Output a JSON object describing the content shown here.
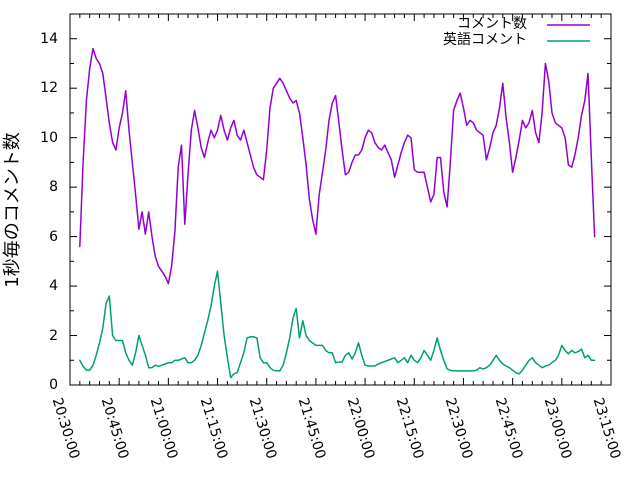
{
  "chart_data": {
    "type": "line",
    "title": "",
    "xlabel": "",
    "ylabel": "1秒毎のコメント数",
    "grid": false,
    "background": "#ffffff",
    "axis_color": "#000000",
    "x_axis": {
      "start": "20:30:00",
      "end": "23:15:00",
      "total_minutes": 165,
      "major_tick_every_min": 15,
      "minor_tick_every_min": 3,
      "tick_labels": [
        "20:30:00",
        "20:45:00",
        "21:00:00",
        "21:15:00",
        "21:30:00",
        "21:45:00",
        "22:00:00",
        "22:15:00",
        "22:30:00",
        "22:45:00",
        "23:00:00",
        "23:15:00"
      ]
    },
    "y_axis": {
      "min": 0,
      "max_label": 14,
      "range_max": 15,
      "major_tick_every": 2,
      "minor_tick_every": 1,
      "tick_labels": [
        "0",
        "2",
        "4",
        "6",
        "8",
        "10",
        "12",
        "14"
      ]
    },
    "legend": {
      "position": "top-right-inside",
      "entries": [
        {
          "label": "コメント数",
          "color": "#9400d3"
        },
        {
          "label": "英語コメント",
          "color": "#009e73"
        }
      ]
    },
    "series": [
      {
        "name": "コメント数",
        "color": "#9400d3",
        "start_offset_min": 3,
        "step_min": 1,
        "values": [
          5.6,
          9.0,
          11.5,
          12.8,
          13.6,
          13.2,
          13.0,
          12.6,
          11.6,
          10.6,
          9.8,
          9.5,
          10.4,
          11.0,
          11.9,
          10.3,
          9.0,
          7.7,
          6.3,
          7.0,
          6.1,
          7.0,
          6.0,
          5.2,
          4.8,
          4.6,
          4.4,
          4.1,
          4.8,
          6.2,
          8.8,
          9.7,
          6.5,
          8.5,
          10.3,
          11.1,
          10.4,
          9.6,
          9.2,
          9.8,
          10.3,
          10.0,
          10.3,
          10.9,
          10.3,
          9.9,
          10.4,
          10.7,
          10.1,
          9.9,
          10.3,
          9.8,
          9.3,
          8.8,
          8.5,
          8.4,
          8.3,
          9.5,
          11.2,
          12.0,
          12.2,
          12.4,
          12.2,
          11.9,
          11.6,
          11.4,
          11.5,
          11.0,
          10.0,
          8.9,
          7.5,
          6.7,
          6.1,
          7.7,
          8.6,
          9.5,
          10.7,
          11.4,
          11.7,
          10.6,
          9.5,
          8.5,
          8.6,
          9.0,
          9.3,
          9.3,
          9.5,
          10.0,
          10.3,
          10.2,
          9.8,
          9.6,
          9.5,
          9.7,
          9.4,
          9.1,
          8.4,
          8.9,
          9.4,
          9.8,
          10.1,
          10.0,
          8.7,
          8.6,
          8.6,
          8.6,
          8.0,
          7.4,
          7.7,
          9.2,
          9.2,
          7.8,
          7.2,
          9.0,
          11.1,
          11.5,
          11.8,
          11.2,
          10.5,
          10.7,
          10.6,
          10.3,
          10.2,
          10.1,
          9.1,
          9.6,
          10.2,
          10.5,
          11.2,
          12.2,
          10.8,
          9.8,
          8.6,
          9.2,
          9.9,
          10.7,
          10.4,
          10.6,
          11.1,
          10.2,
          9.8,
          11.0,
          13.0,
          12.3,
          11.0,
          10.6,
          10.5,
          10.4,
          10.0,
          8.9,
          8.8,
          9.3,
          10.0,
          10.9,
          11.5,
          12.6,
          9.2,
          6.0
        ]
      },
      {
        "name": "英語コメント",
        "color": "#009e73",
        "start_offset_min": 3,
        "step_min": 1,
        "values": [
          1.0,
          0.75,
          0.6,
          0.6,
          0.8,
          1.2,
          1.7,
          2.3,
          3.3,
          3.6,
          2.0,
          1.8,
          1.8,
          1.8,
          1.3,
          1.0,
          0.8,
          1.3,
          2.0,
          1.6,
          1.2,
          0.7,
          0.7,
          0.8,
          0.75,
          0.8,
          0.85,
          0.9,
          0.9,
          1.0,
          1.0,
          1.05,
          1.1,
          0.9,
          0.9,
          1.0,
          1.2,
          1.6,
          2.1,
          2.6,
          3.2,
          4.0,
          4.6,
          3.3,
          2.0,
          1.1,
          0.3,
          0.45,
          0.5,
          0.9,
          1.3,
          1.9,
          1.95,
          1.95,
          1.9,
          1.1,
          0.9,
          0.9,
          0.7,
          0.6,
          0.57,
          0.57,
          0.8,
          1.3,
          1.9,
          2.7,
          3.1,
          1.9,
          2.6,
          2.0,
          1.8,
          1.7,
          1.6,
          1.6,
          1.6,
          1.4,
          1.3,
          1.3,
          0.9,
          0.93,
          0.93,
          1.2,
          1.3,
          1.05,
          1.3,
          1.7,
          1.2,
          0.8,
          0.77,
          0.77,
          0.77,
          0.85,
          0.9,
          0.95,
          1.0,
          1.05,
          1.1,
          0.9,
          1.0,
          1.1,
          0.9,
          1.2,
          1.0,
          0.9,
          1.1,
          1.4,
          1.2,
          1.0,
          1.4,
          1.9,
          1.4,
          1.0,
          0.65,
          0.6,
          0.57,
          0.57,
          0.57,
          0.57,
          0.57,
          0.57,
          0.57,
          0.6,
          0.7,
          0.65,
          0.7,
          0.8,
          1.0,
          1.2,
          1.0,
          0.85,
          0.77,
          0.7,
          0.6,
          0.5,
          0.45,
          0.6,
          0.8,
          1.0,
          1.1,
          0.9,
          0.8,
          0.7,
          0.77,
          0.8,
          0.9,
          1.0,
          1.2,
          1.6,
          1.4,
          1.26,
          1.4,
          1.3,
          1.35,
          1.45,
          1.1,
          1.2,
          1.0,
          1.0
        ]
      }
    ]
  }
}
